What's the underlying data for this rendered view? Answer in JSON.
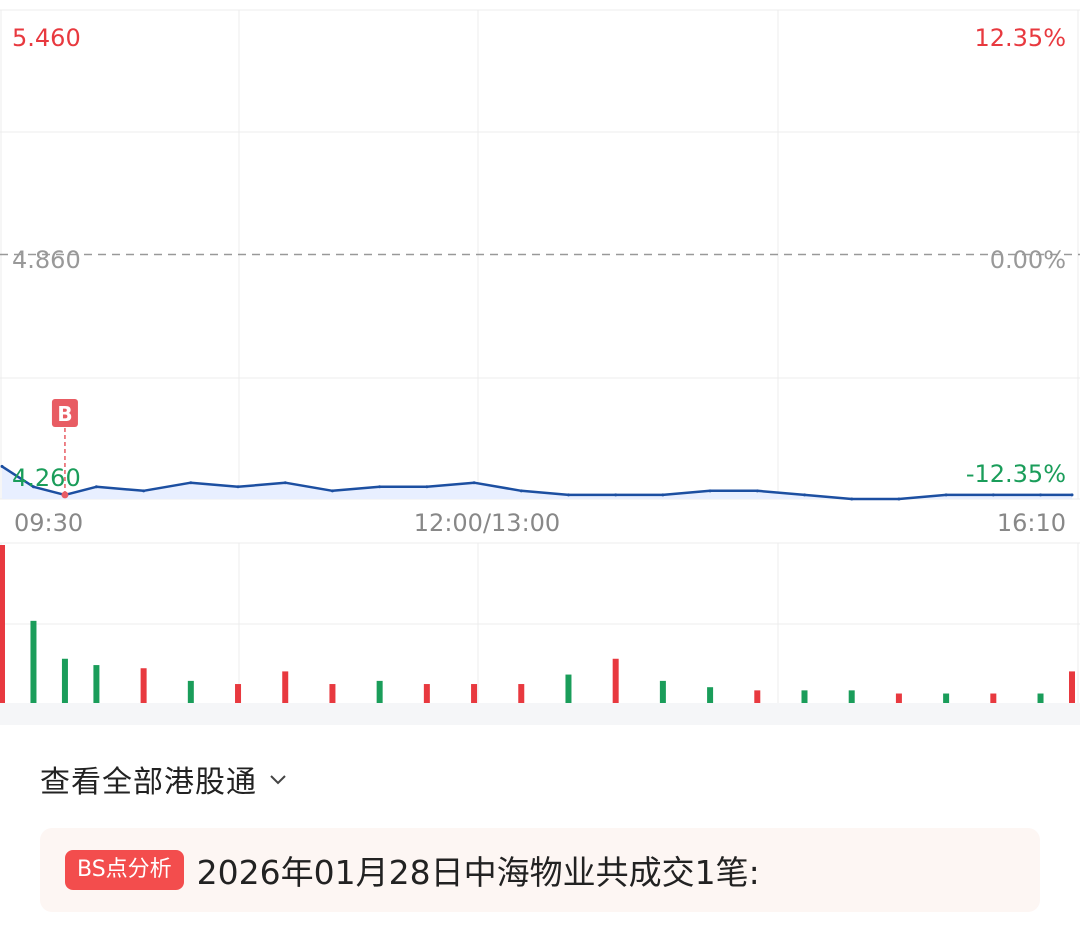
{
  "price_chart": {
    "y_top_price": "5.460",
    "y_top_pct": "12.35%",
    "y_mid_price": "4.860",
    "y_mid_pct": "0.00%",
    "y_bot_price": "4.260",
    "y_bot_pct": "-12.35%",
    "x_start": "09:30",
    "x_mid": "12:00/13:00",
    "x_end": "16:10",
    "marker_label": "B",
    "colors": {
      "line": "#1c4fa1",
      "fill": "#e8efff",
      "up": "#e8393f",
      "down": "#1a9d5a",
      "neutral": "#999999",
      "marker": "#e85c63"
    }
  },
  "chart_data": [
    {
      "type": "line",
      "title": "",
      "xlabel": "",
      "ylabel": "",
      "x_ticks": [
        "09:30",
        "12:00/13:00",
        "16:10"
      ],
      "y_ticks": [
        "5.460",
        "4.860",
        "4.260"
      ],
      "y_ticks_right": [
        "12.35%",
        "0.00%",
        "-12.35%"
      ],
      "ylim": [
        4.26,
        5.46
      ],
      "reference_price": 4.86,
      "x": [
        "09:30",
        "09:40",
        "09:50",
        "10:00",
        "10:15",
        "10:30",
        "10:45",
        "11:00",
        "11:15",
        "11:30",
        "11:45",
        "12:00",
        "13:15",
        "13:30",
        "13:45",
        "14:00",
        "14:15",
        "14:30",
        "14:45",
        "15:00",
        "15:15",
        "15:30",
        "15:45",
        "16:00",
        "16:10"
      ],
      "values": [
        4.34,
        4.29,
        4.27,
        4.29,
        4.28,
        4.3,
        4.29,
        4.3,
        4.28,
        4.29,
        4.29,
        4.3,
        4.28,
        4.27,
        4.27,
        4.27,
        4.28,
        4.28,
        4.27,
        4.26,
        4.26,
        4.27,
        4.27,
        4.27,
        4.27
      ],
      "annotations": [
        {
          "label": "B",
          "x": "09:50"
        }
      ],
      "grid": true
    },
    {
      "type": "bar",
      "title": "",
      "x": [
        "09:30",
        "09:40",
        "09:50",
        "10:00",
        "10:15",
        "10:30",
        "10:45",
        "11:00",
        "11:15",
        "11:30",
        "11:45",
        "12:00",
        "13:15",
        "13:30",
        "13:45",
        "14:00",
        "14:15",
        "14:30",
        "14:45",
        "15:00",
        "15:15",
        "15:30",
        "15:45",
        "16:00",
        "16:10"
      ],
      "values": [
        100,
        52,
        28,
        24,
        22,
        14,
        12,
        20,
        12,
        14,
        12,
        12,
        12,
        18,
        28,
        14,
        10,
        8,
        8,
        8,
        6,
        6,
        6,
        6,
        20
      ],
      "direction": [
        "up",
        "down",
        "down",
        "down",
        "up",
        "down",
        "up",
        "up",
        "up",
        "down",
        "up",
        "up",
        "up",
        "down",
        "up",
        "down",
        "down",
        "up",
        "down",
        "down",
        "up",
        "down",
        "up",
        "down",
        "up"
      ],
      "ylim": [
        0,
        100
      ],
      "grid": true
    }
  ],
  "hk_link": {
    "label": "查看全部港股通",
    "chevron_icon": "chevron-down-icon"
  },
  "bs_card": {
    "badge": "BS点分析",
    "text": "2026年01月28日中海物业共成交1笔:"
  }
}
